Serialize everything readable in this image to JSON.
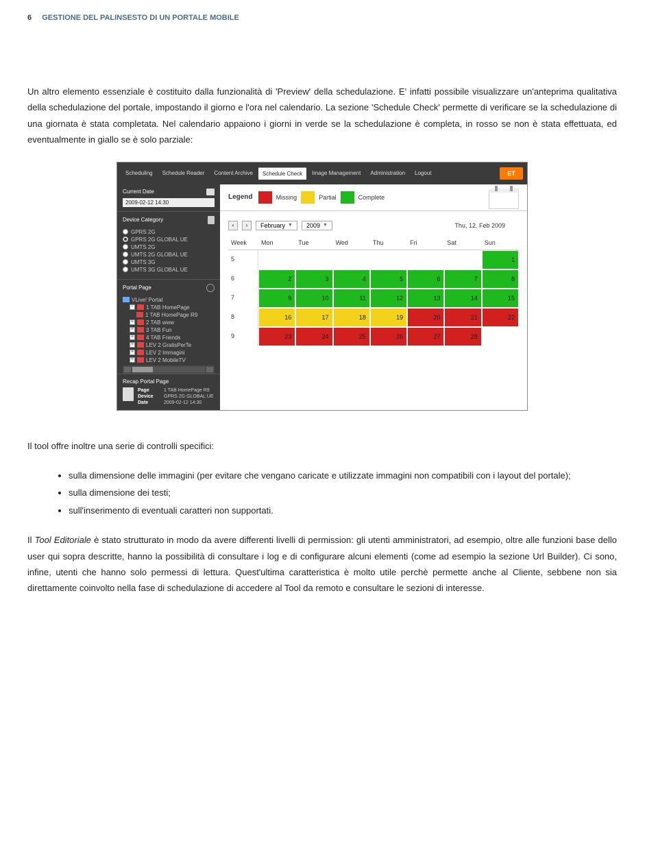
{
  "header": {
    "page_num": "6",
    "title": "GESTIONE DEL PALINSESTO DI UN PORTALE MOBILE"
  },
  "para1": "Un altro elemento essenziale è costituito dalla funzionalità di 'Preview' della schedulazione. E' infatti possibile visualizzare un'anteprima qualitativa della schedulazione del portale, impostando il giorno e l'ora nel calendario. La sezione 'Schedule Check' permette di verificare se la schedulazione di una giornata è stata completata. Nel calendario appaiono i giorni in verde se la schedulazione è completa, in rosso se non è stata effettuata, ed eventualmente in giallo se è solo parziale:",
  "screenshot": {
    "tabs": [
      "Scheduling",
      "Schedule Reader",
      "Content Archive",
      "Schedule Check",
      "Image Management",
      "Administration",
      "Logout"
    ],
    "active_tab": 3,
    "logo": "ET",
    "sidebar": {
      "current_date": {
        "title": "Current Date",
        "value": "2009-02-12 14:30"
      },
      "device_cat": {
        "title": "Device Category",
        "options": [
          "GPRS 2G",
          "GPRS 2G GLOBAL UE",
          "UMTS 2G",
          "UMTS 2G GLOBAL UE",
          "UMTS 3G",
          "UMTS 3G GLOBAL UE"
        ],
        "selected": 1
      },
      "portal_page": {
        "title": "Portal Page",
        "tree": [
          {
            "exp": "",
            "ico": "blue",
            "label": "VLive! Portal",
            "ind": 0
          },
          {
            "exp": "-",
            "ico": "red",
            "label": "1 TAB HomePage",
            "ind": 1
          },
          {
            "exp": "",
            "ico": "red",
            "label": "1 TAB HomePage R9",
            "ind": 2
          },
          {
            "exp": "+",
            "ico": "red",
            "label": "2 TAB www",
            "ind": 1
          },
          {
            "exp": "+",
            "ico": "red",
            "label": "3 TAB Fun",
            "ind": 1
          },
          {
            "exp": "+",
            "ico": "red",
            "label": "4 TAB Friends",
            "ind": 1
          },
          {
            "exp": "+",
            "ico": "red",
            "label": "LEV 2 GratisPerTe",
            "ind": 1
          },
          {
            "exp": "+",
            "ico": "red",
            "label": "LEV 2 Immagini",
            "ind": 1
          },
          {
            "exp": "+",
            "ico": "red",
            "label": "LEV 2 MobileTV",
            "ind": 1
          }
        ]
      },
      "recap": {
        "title": "Recap Portal Page",
        "rows": [
          [
            "Page",
            "1 TAB HomePage R9"
          ],
          [
            "Device",
            "GPRS 2G GLOBAL UE"
          ],
          [
            "Date",
            "2009-02-12 14:30"
          ]
        ]
      }
    },
    "legend": {
      "label": "Legend",
      "items": [
        {
          "color": "#d21f1f",
          "text": "Missing"
        },
        {
          "color": "#f2d21a",
          "text": "Partial"
        },
        {
          "color": "#1fb81f",
          "text": "Complete"
        }
      ]
    },
    "nav": {
      "month": "February",
      "year": "2009",
      "date_label": "Thu, 12. Feb 2009"
    },
    "calendar": {
      "head": [
        "Week",
        "Mon",
        "Tue",
        "Wed",
        "Thu",
        "Fri",
        "Sat",
        "Sun"
      ],
      "weeks": [
        {
          "wk": "5",
          "cells": [
            {
              "n": "",
              "c": ""
            },
            {
              "n": "",
              "c": ""
            },
            {
              "n": "",
              "c": ""
            },
            {
              "n": "",
              "c": ""
            },
            {
              "n": "",
              "c": ""
            },
            {
              "n": "",
              "c": ""
            },
            {
              "n": "1",
              "c": "#1fb81f"
            }
          ]
        },
        {
          "wk": "6",
          "cells": [
            {
              "n": "2",
              "c": "#1fb81f"
            },
            {
              "n": "3",
              "c": "#1fb81f"
            },
            {
              "n": "4",
              "c": "#1fb81f"
            },
            {
              "n": "5",
              "c": "#1fb81f"
            },
            {
              "n": "6",
              "c": "#1fb81f"
            },
            {
              "n": "7",
              "c": "#1fb81f"
            },
            {
              "n": "8",
              "c": "#1fb81f"
            }
          ]
        },
        {
          "wk": "7",
          "cells": [
            {
              "n": "9",
              "c": "#1fb81f"
            },
            {
              "n": "10",
              "c": "#1fb81f"
            },
            {
              "n": "11",
              "c": "#1fb81f"
            },
            {
              "n": "12",
              "c": "#1fb81f"
            },
            {
              "n": "13",
              "c": "#1fb81f"
            },
            {
              "n": "14",
              "c": "#1fb81f"
            },
            {
              "n": "15",
              "c": "#1fb81f"
            }
          ]
        },
        {
          "wk": "8",
          "cells": [
            {
              "n": "16",
              "c": "#f2d21a"
            },
            {
              "n": "17",
              "c": "#f2d21a"
            },
            {
              "n": "18",
              "c": "#f2d21a"
            },
            {
              "n": "19",
              "c": "#f2d21a"
            },
            {
              "n": "20",
              "c": "#d21f1f"
            },
            {
              "n": "21",
              "c": "#d21f1f"
            },
            {
              "n": "22",
              "c": "#d21f1f"
            }
          ]
        },
        {
          "wk": "9",
          "cells": [
            {
              "n": "23",
              "c": "#d21f1f"
            },
            {
              "n": "24",
              "c": "#d21f1f"
            },
            {
              "n": "25",
              "c": "#d21f1f"
            },
            {
              "n": "26",
              "c": "#d21f1f"
            },
            {
              "n": "27",
              "c": "#d21f1f"
            },
            {
              "n": "28",
              "c": "#d21f1f"
            },
            {
              "n": "",
              "c": ""
            }
          ]
        }
      ]
    }
  },
  "para2": "Il tool offre inoltre una serie di controlli specifici:",
  "bullets": [
    "sulla dimensione delle immagini (per evitare che vengano caricate e utilizzate immagini non compatibili con i layout del portale);",
    "sulla dimensione dei testi;",
    "sull'inserimento di eventuali caratteri non supportati."
  ],
  "para3_pre": "Il ",
  "para3_italic": "Tool Editoriale",
  "para3_post": " è stato strutturato in modo da avere differenti livelli di permission: gli utenti amministratori, ad esempio, oltre alle funzioni base dello user qui sopra descritte, hanno la possibilità di consultare i log e di configurare alcuni elementi (come ad esempio la sezione Url Builder). Ci sono, infine, utenti che hanno solo permessi di lettura. Quest'ultima caratteristica è molto utile perchè permette anche al Cliente, sebbene non sia direttamente coinvolto nella fase di schedulazione di accedere al Tool da remoto e consultare le sezioni di interesse."
}
